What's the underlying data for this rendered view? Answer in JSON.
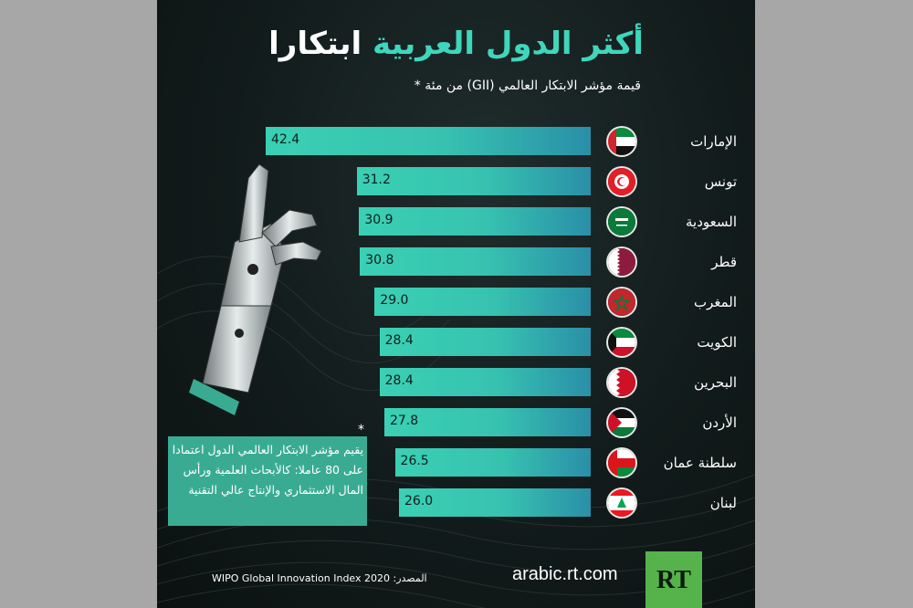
{
  "title": {
    "part_accent": "أكثر الدول العربية",
    "part_white": "ابتكارا"
  },
  "subtitle": "قيمة مؤشر الابتكار العالمي (GII) من مئة *",
  "colors": {
    "bar_fill": "#3ad0b4",
    "bar_right": "#2a8fa8",
    "accent": "#3fd6bd",
    "note_bg": "#3aab93",
    "rt_green": "#56b34c"
  },
  "chart_data": {
    "type": "bar",
    "orientation": "horizontal",
    "categories": [
      "الإمارات",
      "تونس",
      "السعودية",
      "قطر",
      "المغرب",
      "الكويت",
      "البحرين",
      "الأردن",
      "سلطنة عمان",
      "لبنان"
    ],
    "values": [
      42.4,
      31.2,
      30.9,
      30.8,
      29.0,
      28.4,
      28.4,
      27.8,
      26.5,
      26.0
    ],
    "value_labels": [
      "42.4",
      "31.2",
      "30.9",
      "30.8",
      "29.0",
      "28.4",
      "28.4",
      "27.8",
      "26.5",
      "26.0"
    ],
    "flags": [
      "uae",
      "tunisia",
      "saudi",
      "qatar",
      "morocco",
      "kuwait",
      "bahrain",
      "jordan",
      "oman",
      "lebanon"
    ]
  },
  "note": "يقيم مؤشر الابتكار العالمي الدول اعتمادا على 80 عاملا: كالأبحاث العلمية ورأس المال الاستثماري والإنتاج عالي التقنية",
  "note_star": "*",
  "footer": {
    "source": "WIPO Global Innovation Index 2020 :المصدر",
    "site": "arabic.rt.com",
    "logo": "RT"
  }
}
